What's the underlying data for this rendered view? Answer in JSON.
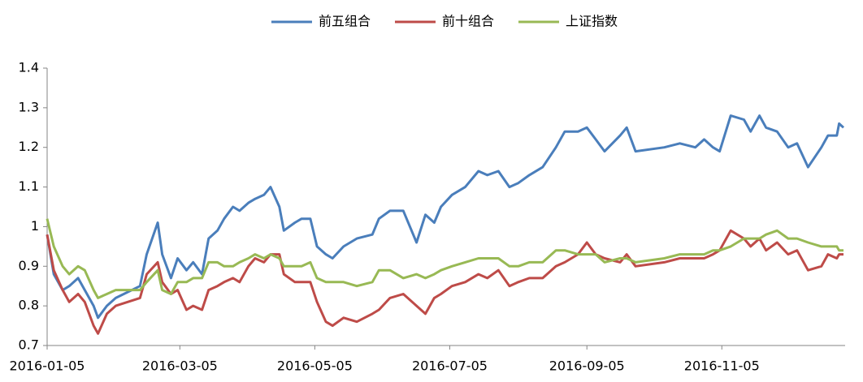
{
  "chart_data": {
    "type": "line",
    "x": [
      "2016-01-05",
      "2016-01-08",
      "2016-01-12",
      "2016-01-15",
      "2016-01-19",
      "2016-01-22",
      "2016-01-26",
      "2016-01-28",
      "2016-02-01",
      "2016-02-05",
      "2016-02-16",
      "2016-02-19",
      "2016-02-24",
      "2016-02-26",
      "2016-03-01",
      "2016-03-04",
      "2016-03-08",
      "2016-03-11",
      "2016-03-15",
      "2016-03-18",
      "2016-03-22",
      "2016-03-25",
      "2016-03-29",
      "2016-04-01",
      "2016-04-05",
      "2016-04-08",
      "2016-04-12",
      "2016-04-15",
      "2016-04-19",
      "2016-04-21",
      "2016-04-26",
      "2016-04-29",
      "2016-05-03",
      "2016-05-06",
      "2016-05-10",
      "2016-05-13",
      "2016-05-18",
      "2016-05-24",
      "2016-05-31",
      "2016-06-03",
      "2016-06-08",
      "2016-06-14",
      "2016-06-20",
      "2016-06-24",
      "2016-06-28",
      "2016-07-01",
      "2016-07-06",
      "2016-07-12",
      "2016-07-18",
      "2016-07-22",
      "2016-07-27",
      "2016-08-01",
      "2016-08-05",
      "2016-08-10",
      "2016-08-16",
      "2016-08-22",
      "2016-08-26",
      "2016-09-01",
      "2016-09-05",
      "2016-09-09",
      "2016-09-13",
      "2016-09-20",
      "2016-09-23",
      "2016-09-27",
      "2016-10-10",
      "2016-10-17",
      "2016-10-24",
      "2016-10-28",
      "2016-11-01",
      "2016-11-04",
      "2016-11-09",
      "2016-11-15",
      "2016-11-18",
      "2016-11-22",
      "2016-11-25",
      "2016-11-30",
      "2016-12-05",
      "2016-12-09",
      "2016-12-14",
      "2016-12-20",
      "2016-12-23",
      "2016-12-27",
      "2016-12-28",
      "2016-12-30"
    ],
    "series": [
      {
        "name": "前五组合",
        "color": "#4a7ebb",
        "values": [
          0.98,
          0.88,
          0.84,
          0.85,
          0.87,
          0.84,
          0.8,
          0.77,
          0.8,
          0.82,
          0.85,
          0.93,
          1.01,
          0.93,
          0.87,
          0.92,
          0.89,
          0.91,
          0.88,
          0.97,
          0.99,
          1.02,
          1.05,
          1.04,
          1.06,
          1.07,
          1.08,
          1.1,
          1.05,
          0.99,
          1.01,
          1.02,
          1.02,
          0.95,
          0.93,
          0.92,
          0.95,
          0.97,
          0.98,
          1.02,
          1.04,
          1.04,
          0.96,
          1.03,
          1.01,
          1.05,
          1.08,
          1.1,
          1.14,
          1.13,
          1.14,
          1.1,
          1.11,
          1.13,
          1.15,
          1.2,
          1.24,
          1.24,
          1.25,
          1.22,
          1.19,
          1.23,
          1.25,
          1.19,
          1.2,
          1.21,
          1.2,
          1.22,
          1.2,
          1.19,
          1.28,
          1.27,
          1.24,
          1.28,
          1.25,
          1.24,
          1.2,
          1.21,
          1.15,
          1.2,
          1.23,
          1.23,
          1.26,
          1.25
        ]
      },
      {
        "name": "前十组合",
        "color": "#be4b48",
        "values": [
          0.98,
          0.89,
          0.84,
          0.81,
          0.83,
          0.81,
          0.75,
          0.73,
          0.78,
          0.8,
          0.82,
          0.88,
          0.91,
          0.86,
          0.83,
          0.84,
          0.79,
          0.8,
          0.79,
          0.84,
          0.85,
          0.86,
          0.87,
          0.86,
          0.9,
          0.92,
          0.91,
          0.93,
          0.93,
          0.88,
          0.86,
          0.86,
          0.86,
          0.81,
          0.76,
          0.75,
          0.77,
          0.76,
          0.78,
          0.79,
          0.82,
          0.83,
          0.8,
          0.78,
          0.82,
          0.83,
          0.85,
          0.86,
          0.88,
          0.87,
          0.89,
          0.85,
          0.86,
          0.87,
          0.87,
          0.9,
          0.91,
          0.93,
          0.96,
          0.93,
          0.92,
          0.91,
          0.93,
          0.9,
          0.91,
          0.92,
          0.92,
          0.92,
          0.93,
          0.94,
          0.99,
          0.97,
          0.95,
          0.97,
          0.94,
          0.96,
          0.93,
          0.94,
          0.89,
          0.9,
          0.93,
          0.92,
          0.93,
          0.93
        ]
      },
      {
        "name": "上证指数",
        "color": "#98b954",
        "values": [
          1.02,
          0.95,
          0.9,
          0.88,
          0.9,
          0.89,
          0.84,
          0.82,
          0.83,
          0.84,
          0.84,
          0.86,
          0.89,
          0.84,
          0.83,
          0.86,
          0.86,
          0.87,
          0.87,
          0.91,
          0.91,
          0.9,
          0.9,
          0.91,
          0.92,
          0.93,
          0.92,
          0.93,
          0.92,
          0.9,
          0.9,
          0.9,
          0.91,
          0.87,
          0.86,
          0.86,
          0.86,
          0.85,
          0.86,
          0.89,
          0.89,
          0.87,
          0.88,
          0.87,
          0.88,
          0.89,
          0.9,
          0.91,
          0.92,
          0.92,
          0.92,
          0.9,
          0.9,
          0.91,
          0.91,
          0.94,
          0.94,
          0.93,
          0.93,
          0.93,
          0.91,
          0.92,
          0.92,
          0.91,
          0.92,
          0.93,
          0.93,
          0.93,
          0.94,
          0.94,
          0.95,
          0.97,
          0.97,
          0.97,
          0.98,
          0.99,
          0.97,
          0.97,
          0.96,
          0.95,
          0.95,
          0.95,
          0.94,
          0.94
        ]
      }
    ],
    "xlim": [
      "2016-01-05",
      "2016-12-30"
    ],
    "xticks": [
      "2016-01-05",
      "2016-03-05",
      "2016-05-05",
      "2016-07-05",
      "2016-09-05",
      "2016-11-05"
    ],
    "ylim": [
      0.7,
      1.4
    ],
    "yticks": [
      0.7,
      0.8,
      0.9,
      1,
      1.1,
      1.2,
      1.3,
      1.4
    ],
    "grid": false,
    "legend": "top"
  }
}
